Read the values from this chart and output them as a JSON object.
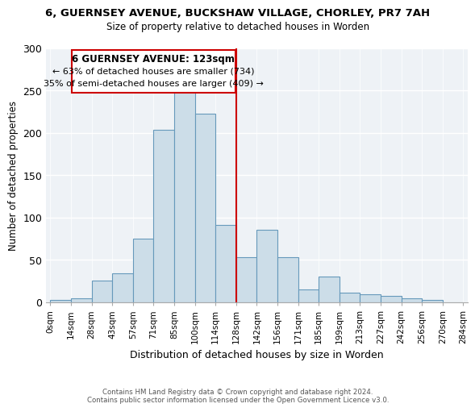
{
  "title_line1": "6, GUERNSEY AVENUE, BUCKSHAW VILLAGE, CHORLEY, PR7 7AH",
  "title_line2": "Size of property relative to detached houses in Worden",
  "xlabel": "Distribution of detached houses by size in Worden",
  "ylabel": "Number of detached properties",
  "bin_labels": [
    "0sqm",
    "14sqm",
    "28sqm",
    "43sqm",
    "57sqm",
    "71sqm",
    "85sqm",
    "100sqm",
    "114sqm",
    "128sqm",
    "142sqm",
    "156sqm",
    "171sqm",
    "185sqm",
    "199sqm",
    "213sqm",
    "227sqm",
    "242sqm",
    "256sqm",
    "270sqm",
    "284sqm"
  ],
  "bar_heights": [
    2,
    4,
    25,
    34,
    75,
    203,
    252,
    222,
    91,
    53,
    85,
    53,
    15,
    30,
    11,
    9,
    7,
    4,
    2,
    0
  ],
  "bar_color": "#ccdde8",
  "bar_edgecolor": "#6699bb",
  "vline_index": 9,
  "annotation_title": "6 GUERNSEY AVENUE: 123sqm",
  "annotation_line2": "← 63% of detached houses are smaller (734)",
  "annotation_line3": "35% of semi-detached houses are larger (409) →",
  "vline_color": "#cc0000",
  "ylim": [
    0,
    300
  ],
  "yticks": [
    0,
    50,
    100,
    150,
    200,
    250,
    300
  ],
  "footer_line1": "Contains HM Land Registry data © Crown copyright and database right 2024.",
  "footer_line2": "Contains public sector information licensed under the Open Government Licence v3.0.",
  "bg_color": "#eef2f6"
}
